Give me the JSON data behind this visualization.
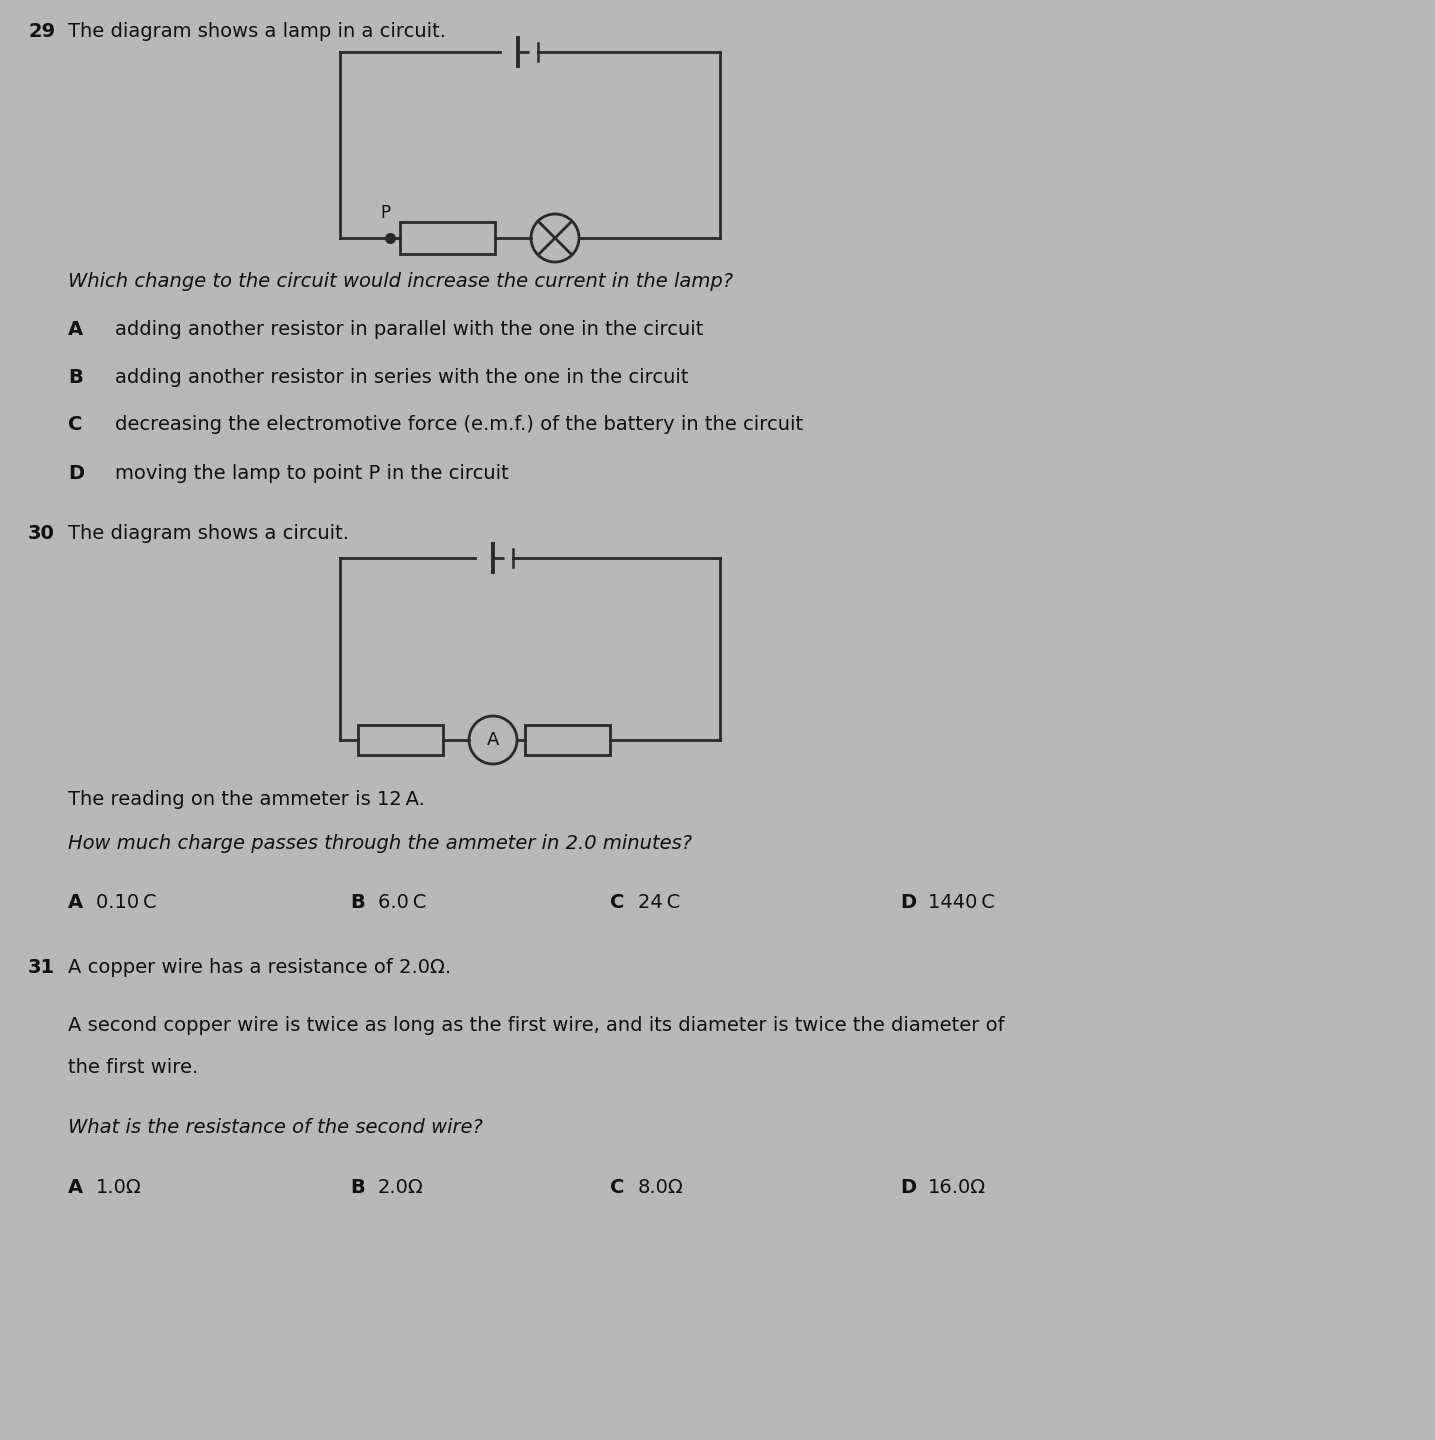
{
  "bg_color": "#b8b8b8",
  "text_color": "#111111",
  "q29_number": "29",
  "q29_title": "The diagram shows a lamp in a circuit.",
  "q29_question": "Which change to the circuit would increase the current in the lamp?",
  "q29_A": "adding another resistor in parallel with the one in the circuit",
  "q29_B": "adding another resistor in series with the one in the circuit",
  "q29_C": "decreasing the electromotive force (e.m.f.) of the battery in the circuit",
  "q29_D": "moving the lamp to point P in the circuit",
  "q30_number": "30",
  "q30_title": "The diagram shows a circuit.",
  "q30_text1": "The reading on the ammeter is 12 A.",
  "q30_question": "How much charge passes through the ammeter in 2.0 minutes?",
  "q30_A": "0.10 C",
  "q30_B": "6.0 C",
  "q30_C": "24 C",
  "q30_D": "1440 C",
  "q31_number": "31",
  "q31_text1": "A copper wire has a resistance of 2.0Ω.",
  "q31_text2": "A second copper wire is twice as long as the first wire, and its diameter is twice the diameter of",
  "q31_text3": "the first wire.",
  "q31_question": "What is the resistance of the second wire?",
  "q31_A": "1.0Ω",
  "q31_B": "2.0Ω",
  "q31_C": "8.0Ω",
  "q31_D": "16.0Ω",
  "circuit_color": "#2a2a2a",
  "lw": 2.0
}
